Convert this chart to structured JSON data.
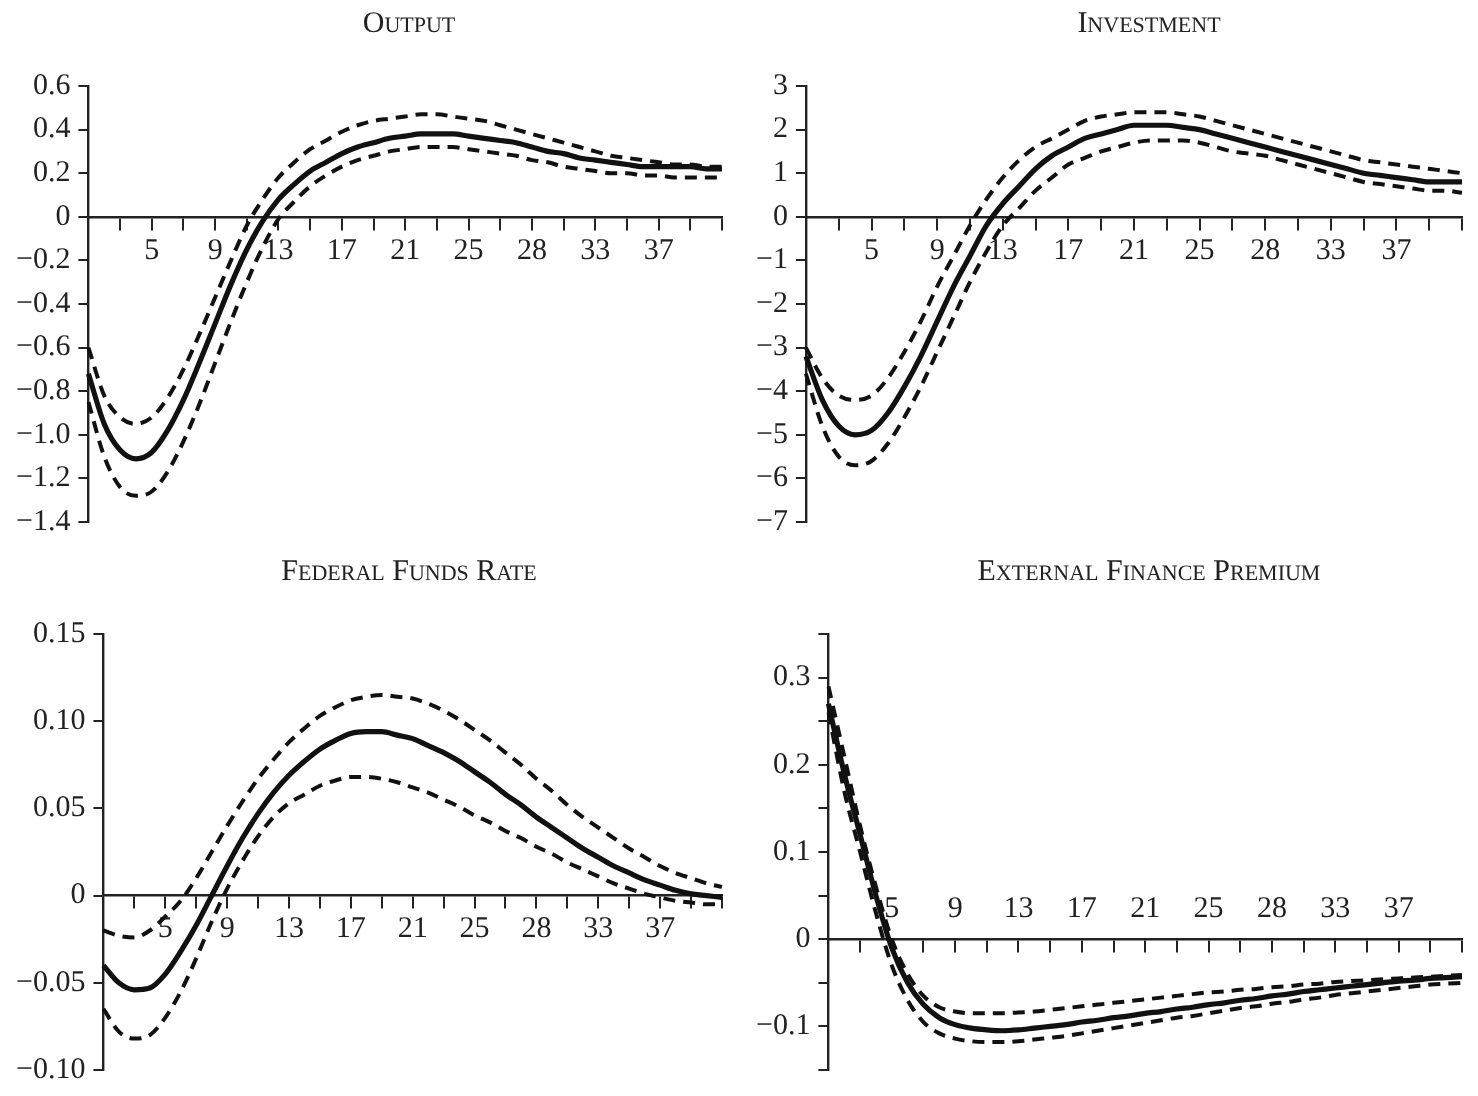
{
  "chart_data": [
    {
      "type": "line",
      "title": "Output",
      "categories": [
        null,
        null,
        null,
        null,
        "5",
        null,
        null,
        null,
        "9",
        null,
        null,
        null,
        "13",
        null,
        null,
        null,
        "17",
        null,
        null,
        null,
        "21",
        null,
        null,
        null,
        "25",
        null,
        null,
        null,
        "28",
        null,
        null,
        null,
        "33",
        null,
        null,
        null,
        "37",
        null,
        null,
        null,
        null
      ],
      "ylim": [
        -1.4,
        0.6
      ],
      "yticks": [
        {
          "value": 0.6,
          "label": "0.6"
        },
        {
          "value": 0.4,
          "label": "0.4"
        },
        {
          "value": 0.2,
          "label": "0.2"
        },
        0,
        {
          "value": -0.2,
          "label": "−0.2"
        },
        {
          "value": -0.4,
          "label": "−0.4"
        },
        {
          "value": -0.6,
          "label": "−0.6"
        },
        {
          "value": -0.8,
          "label": "−0.8"
        },
        {
          "value": -1.0,
          "label": "−1.0"
        },
        {
          "value": -1.2,
          "label": "−1.2"
        },
        {
          "value": -1.4,
          "label": "−1.4"
        }
      ],
      "series": [
        {
          "color": "#111111",
          "line_style": "solid",
          "values": [
            -0.72,
            -0.95,
            -1.07,
            -1.11,
            -1.08,
            -0.98,
            -0.84,
            -0.67,
            -0.49,
            -0.31,
            -0.15,
            -0.02,
            0.08,
            0.15,
            0.21,
            0.25,
            0.29,
            0.32,
            0.34,
            0.36,
            0.37,
            0.38,
            0.38,
            0.38,
            0.37,
            0.36,
            0.35,
            0.34,
            0.32,
            0.3,
            0.29,
            0.27,
            0.26,
            0.25,
            0.24,
            0.23,
            0.23,
            0.23,
            0.23,
            0.22,
            0.22
          ]
        },
        {
          "color": "#111111",
          "line_style": "dashed",
          "values": [
            -0.6,
            -0.82,
            -0.92,
            -0.95,
            -0.92,
            -0.83,
            -0.7,
            -0.54,
            -0.37,
            -0.2,
            -0.04,
            0.08,
            0.18,
            0.25,
            0.31,
            0.35,
            0.39,
            0.42,
            0.44,
            0.45,
            0.46,
            0.47,
            0.47,
            0.46,
            0.45,
            0.44,
            0.42,
            0.4,
            0.38,
            0.36,
            0.34,
            0.32,
            0.3,
            0.28,
            0.27,
            0.26,
            0.25,
            0.24,
            0.24,
            0.23,
            0.23
          ]
        },
        {
          "color": "#111111",
          "line_style": "dashed",
          "values": [
            -0.85,
            -1.1,
            -1.24,
            -1.28,
            -1.26,
            -1.17,
            -1.03,
            -0.86,
            -0.67,
            -0.48,
            -0.3,
            -0.14,
            -0.01,
            0.07,
            0.14,
            0.19,
            0.23,
            0.26,
            0.28,
            0.3,
            0.31,
            0.32,
            0.32,
            0.32,
            0.31,
            0.3,
            0.29,
            0.28,
            0.26,
            0.25,
            0.23,
            0.22,
            0.21,
            0.2,
            0.2,
            0.19,
            0.19,
            0.18,
            0.18,
            0.18,
            0.18
          ]
        }
      ]
    },
    {
      "type": "line",
      "title": "Investment",
      "categories": [
        null,
        null,
        null,
        null,
        "5",
        null,
        null,
        null,
        "9",
        null,
        null,
        null,
        "13",
        null,
        null,
        null,
        "17",
        null,
        null,
        null,
        "21",
        null,
        null,
        null,
        "25",
        null,
        null,
        null,
        "28",
        null,
        null,
        null,
        "33",
        null,
        null,
        null,
        "37",
        null,
        null,
        null,
        null
      ],
      "ylim": [
        -7,
        3
      ],
      "yticks": [
        3,
        2,
        1,
        0,
        {
          "value": -1,
          "label": "−1"
        },
        {
          "value": -2,
          "label": "−2"
        },
        {
          "value": -3,
          "label": "−3"
        },
        {
          "value": -4,
          "label": "−4"
        },
        {
          "value": -5,
          "label": "−5"
        },
        {
          "value": -6,
          "label": "−6"
        },
        {
          "value": -7,
          "label": "−7"
        }
      ],
      "series": [
        {
          "color": "#111111",
          "line_style": "solid",
          "values": [
            -3.2,
            -4.2,
            -4.8,
            -5.0,
            -4.9,
            -4.5,
            -3.9,
            -3.2,
            -2.4,
            -1.6,
            -0.9,
            -0.2,
            0.3,
            0.7,
            1.1,
            1.4,
            1.6,
            1.8,
            1.9,
            2.0,
            2.1,
            2.1,
            2.1,
            2.05,
            2.0,
            1.9,
            1.8,
            1.7,
            1.6,
            1.5,
            1.4,
            1.3,
            1.2,
            1.1,
            1.0,
            0.95,
            0.9,
            0.85,
            0.8,
            0.8,
            0.8
          ]
        },
        {
          "color": "#111111",
          "line_style": "dashed",
          "values": [
            -3.0,
            -3.7,
            -4.1,
            -4.2,
            -4.1,
            -3.7,
            -3.1,
            -2.4,
            -1.6,
            -0.9,
            -0.2,
            0.4,
            0.9,
            1.3,
            1.6,
            1.8,
            2.0,
            2.2,
            2.3,
            2.35,
            2.4,
            2.4,
            2.4,
            2.35,
            2.3,
            2.2,
            2.1,
            2.0,
            1.9,
            1.8,
            1.7,
            1.6,
            1.5,
            1.4,
            1.3,
            1.25,
            1.2,
            1.15,
            1.1,
            1.05,
            1.0
          ]
        },
        {
          "color": "#111111",
          "line_style": "dashed",
          "values": [
            -3.6,
            -4.8,
            -5.5,
            -5.7,
            -5.6,
            -5.2,
            -4.6,
            -3.9,
            -3.1,
            -2.3,
            -1.5,
            -0.8,
            -0.2,
            0.2,
            0.6,
            0.9,
            1.2,
            1.35,
            1.5,
            1.6,
            1.7,
            1.75,
            1.75,
            1.75,
            1.7,
            1.6,
            1.5,
            1.45,
            1.4,
            1.3,
            1.2,
            1.1,
            1.0,
            0.9,
            0.8,
            0.75,
            0.7,
            0.65,
            0.6,
            0.6,
            0.55
          ]
        }
      ]
    },
    {
      "type": "line",
      "title": "Federal Funds Rate",
      "categories": [
        null,
        null,
        null,
        null,
        "5",
        null,
        null,
        null,
        "9",
        null,
        null,
        null,
        "13",
        null,
        null,
        null,
        "17",
        null,
        null,
        null,
        "21",
        null,
        null,
        null,
        "25",
        null,
        null,
        null,
        "28",
        null,
        null,
        null,
        "33",
        null,
        null,
        null,
        "37",
        null,
        null,
        null,
        null
      ],
      "ylim": [
        -0.1,
        0.15
      ],
      "yticks": [
        {
          "value": 0.15,
          "label": "0.15"
        },
        {
          "value": 0.1,
          "label": "0.10"
        },
        {
          "value": 0.05,
          "label": "0.05"
        },
        0,
        {
          "value": -0.05,
          "label": "−0.05"
        },
        {
          "value": -0.1,
          "label": "−0.10"
        }
      ],
      "series": [
        {
          "color": "#111111",
          "line_style": "solid",
          "values": [
            -0.04,
            -0.05,
            -0.054,
            -0.053,
            -0.045,
            -0.032,
            -0.017,
            0.0,
            0.017,
            0.033,
            0.047,
            0.059,
            0.069,
            0.077,
            0.084,
            0.089,
            0.093,
            0.094,
            0.094,
            0.092,
            0.09,
            0.086,
            0.082,
            0.077,
            0.071,
            0.065,
            0.058,
            0.052,
            0.045,
            0.039,
            0.033,
            0.027,
            0.022,
            0.017,
            0.013,
            0.009,
            0.006,
            0.003,
            0.001,
            0.0,
            -0.001
          ]
        },
        {
          "color": "#111111",
          "line_style": "dashed",
          "values": [
            -0.02,
            -0.023,
            -0.024,
            -0.02,
            -0.012,
            -0.003,
            0.01,
            0.025,
            0.04,
            0.054,
            0.067,
            0.078,
            0.088,
            0.096,
            0.103,
            0.108,
            0.112,
            0.114,
            0.115,
            0.114,
            0.113,
            0.11,
            0.106,
            0.101,
            0.095,
            0.089,
            0.082,
            0.075,
            0.067,
            0.06,
            0.052,
            0.045,
            0.039,
            0.033,
            0.027,
            0.022,
            0.017,
            0.013,
            0.01,
            0.007,
            0.005
          ]
        },
        {
          "color": "#111111",
          "line_style": "dashed",
          "values": [
            -0.065,
            -0.078,
            -0.082,
            -0.08,
            -0.07,
            -0.055,
            -0.036,
            -0.015,
            0.004,
            0.02,
            0.034,
            0.045,
            0.053,
            0.058,
            0.063,
            0.066,
            0.068,
            0.068,
            0.067,
            0.065,
            0.062,
            0.059,
            0.055,
            0.051,
            0.046,
            0.042,
            0.037,
            0.033,
            0.028,
            0.024,
            0.019,
            0.015,
            0.011,
            0.007,
            0.004,
            0.001,
            -0.001,
            -0.003,
            -0.004,
            -0.005,
            -0.005
          ]
        }
      ]
    },
    {
      "type": "line",
      "title": "External Finance Premium",
      "categories": [
        null,
        null,
        null,
        null,
        "5",
        null,
        null,
        null,
        "9",
        null,
        null,
        null,
        "13",
        null,
        null,
        null,
        "17",
        null,
        null,
        null,
        "21",
        null,
        null,
        null,
        "25",
        null,
        null,
        null,
        "28",
        null,
        null,
        null,
        "33",
        null,
        null,
        null,
        "37",
        null,
        null,
        null,
        null
      ],
      "ylim": [
        -0.15,
        0.35
      ],
      "yticks": [
        {
          "value": 0.35,
          "label": null
        },
        0.3,
        {
          "value": 0.25,
          "label": null
        },
        0.2,
        {
          "value": 0.15,
          "label": null
        },
        0.1,
        {
          "value": 0.05,
          "label": null
        },
        0,
        {
          "value": -0.05,
          "label": null
        },
        {
          "value": -0.1,
          "label": "−0.1"
        },
        {
          "value": -0.15,
          "label": null
        }
      ],
      "series": [
        {
          "color": "#111111",
          "line_style": "solid",
          "values": [
            0.27,
            0.19,
            0.12,
            0.05,
            -0.01,
            -0.05,
            -0.075,
            -0.09,
            -0.098,
            -0.102,
            -0.104,
            -0.105,
            -0.104,
            -0.102,
            -0.1,
            -0.098,
            -0.095,
            -0.093,
            -0.09,
            -0.088,
            -0.085,
            -0.083,
            -0.08,
            -0.078,
            -0.075,
            -0.073,
            -0.07,
            -0.068,
            -0.065,
            -0.063,
            -0.06,
            -0.058,
            -0.056,
            -0.054,
            -0.052,
            -0.05,
            -0.048,
            -0.047,
            -0.045,
            -0.044,
            -0.043
          ]
        },
        {
          "color": "#111111",
          "line_style": "dashed",
          "values": [
            0.29,
            0.21,
            0.13,
            0.06,
            0.0,
            -0.04,
            -0.065,
            -0.078,
            -0.083,
            -0.085,
            -0.085,
            -0.085,
            -0.084,
            -0.083,
            -0.081,
            -0.079,
            -0.077,
            -0.075,
            -0.073,
            -0.071,
            -0.069,
            -0.067,
            -0.065,
            -0.063,
            -0.061,
            -0.06,
            -0.058,
            -0.057,
            -0.055,
            -0.054,
            -0.052,
            -0.051,
            -0.049,
            -0.048,
            -0.047,
            -0.046,
            -0.045,
            -0.044,
            -0.043,
            -0.042,
            -0.041
          ]
        },
        {
          "color": "#111111",
          "line_style": "dashed",
          "values": [
            0.26,
            0.17,
            0.1,
            0.03,
            -0.03,
            -0.07,
            -0.095,
            -0.108,
            -0.114,
            -0.117,
            -0.118,
            -0.118,
            -0.117,
            -0.115,
            -0.113,
            -0.111,
            -0.108,
            -0.105,
            -0.102,
            -0.099,
            -0.096,
            -0.093,
            -0.09,
            -0.088,
            -0.085,
            -0.082,
            -0.079,
            -0.077,
            -0.074,
            -0.072,
            -0.069,
            -0.067,
            -0.064,
            -0.062,
            -0.06,
            -0.058,
            -0.056,
            -0.054,
            -0.052,
            -0.051,
            -0.05
          ]
        }
      ]
    }
  ]
}
